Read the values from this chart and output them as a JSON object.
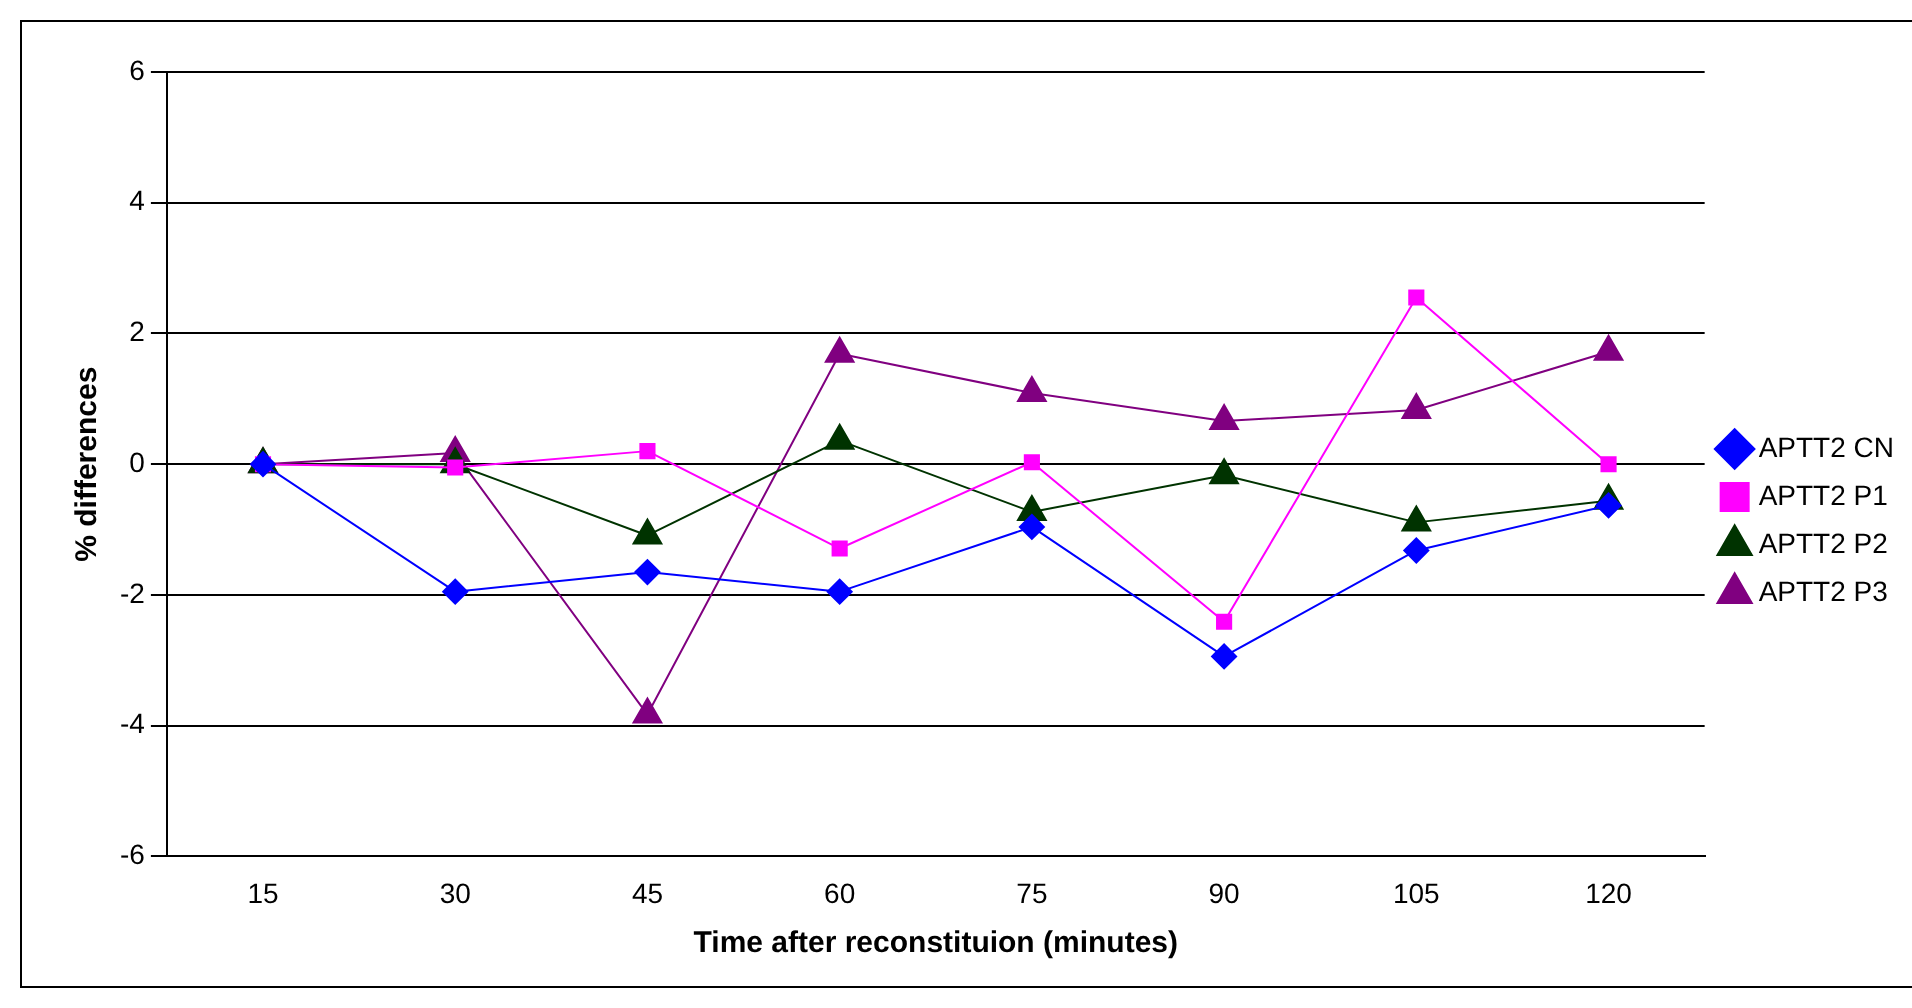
{
  "chart_data": {
    "type": "line",
    "xlabel": "Time after reconstituion (minutes)",
    "ylabel": "% differences",
    "categories": [
      "15",
      "30",
      "45",
      "60",
      "75",
      "90",
      "105",
      "120"
    ],
    "ylim": [
      -6,
      6
    ],
    "yticks": [
      -6,
      -4,
      -2,
      0,
      2,
      4,
      6
    ],
    "grid": "y",
    "legend": "right",
    "line_style": "solid",
    "series": [
      {
        "name": "APTT2 CN",
        "color": "#0000ff",
        "marker": "diamond",
        "values": [
          0,
          -1.95,
          -1.65,
          -1.95,
          -0.96,
          -2.94,
          -1.32,
          -0.63
        ]
      },
      {
        "name": "APTT2 P1",
        "color": "#ff00ff",
        "marker": "square",
        "values": [
          0,
          -0.05,
          0.2,
          -1.29,
          0.03,
          -2.41,
          2.55,
          0
        ]
      },
      {
        "name": "APTT2 P2",
        "color": "#003300",
        "marker": "triangle",
        "values": [
          0,
          0,
          -1.09,
          0.36,
          -0.73,
          -0.17,
          -0.89,
          -0.56
        ]
      },
      {
        "name": "APTT2 P3",
        "color": "#800080",
        "marker": "triangle",
        "values": [
          0,
          0.17,
          -3.83,
          1.69,
          1.09,
          0.66,
          0.83,
          1.72
        ]
      }
    ]
  }
}
